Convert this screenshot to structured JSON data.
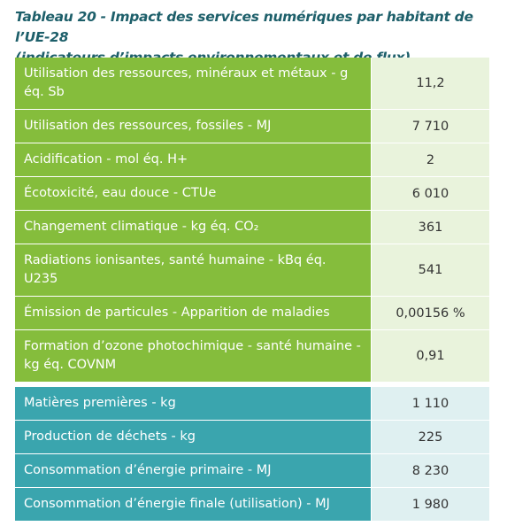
{
  "header": {
    "title": "Tableau 20 - Impact des services numériques par habitant de l’UE-28",
    "subtitle": "(indicateurs d’impacts environnementaux et de flux)"
  },
  "table": {
    "sections": [
      {
        "label_color": "#85bd3c",
        "value_color": "#e9f3dc",
        "rows": [
          [
            "Utilisation des ressources, minéraux et métaux - g éq. Sb",
            "11,2"
          ],
          [
            "Utilisation des ressources, fossiles - MJ",
            "7 710"
          ],
          [
            "Acidification - mol éq. H+",
            "2"
          ],
          [
            "Écotoxicité, eau douce - CTUe",
            "6 010"
          ],
          [
            "Changement climatique - kg éq. CO₂",
            "361"
          ],
          [
            "Radiations ionisantes, santé humaine - kBq éq. U235",
            "541"
          ],
          [
            "Émission de particules - Apparition de maladies",
            "0,00156 %"
          ],
          [
            "Formation d’ozone photochimique - santé humaine - kg éq. COVNM",
            "0,91"
          ]
        ]
      },
      {
        "label_color": "#3aa5ae",
        "value_color": "#dff0f1",
        "rows": [
          [
            "Matières premières - kg",
            "1 110"
          ],
          [
            "Production de déchets - kg",
            "225"
          ],
          [
            "Consommation d’énergie primaire - MJ",
            "8 230"
          ],
          [
            "Consommation d’énergie finale (utilisation) - MJ",
            "1 980"
          ]
        ]
      }
    ]
  }
}
